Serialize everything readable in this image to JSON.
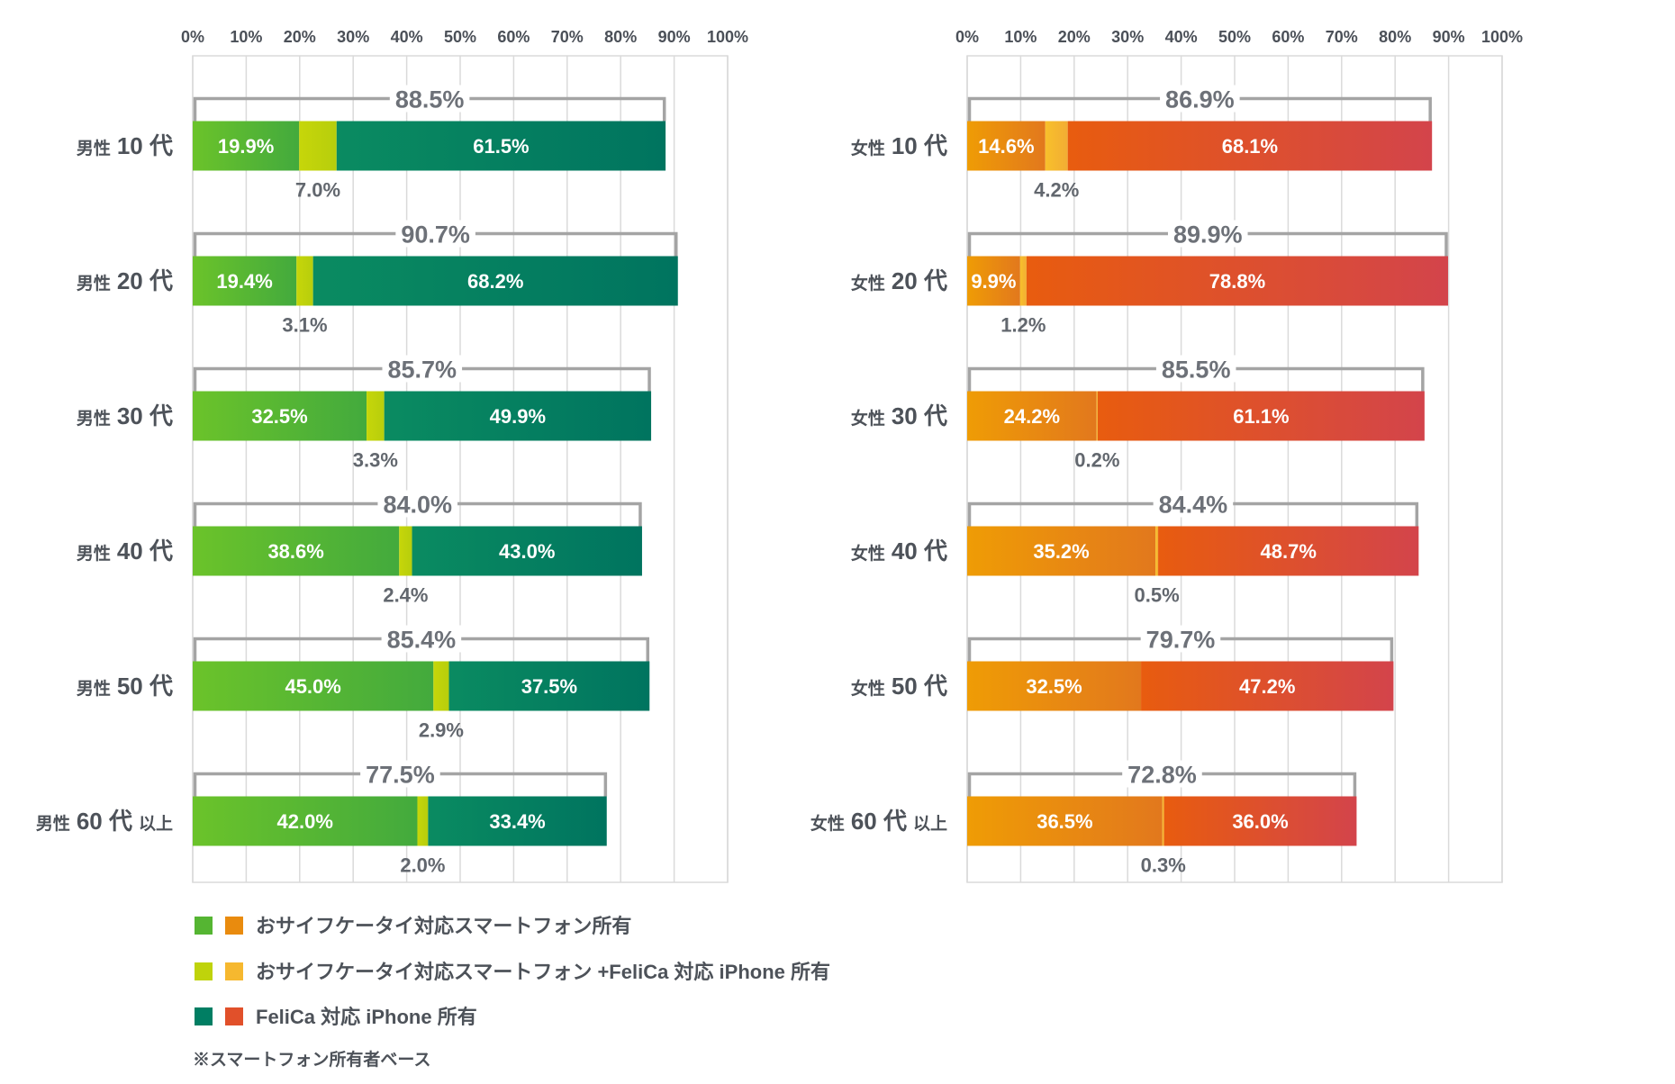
{
  "chart_data": [
    {
      "type": "bar",
      "orientation": "horizontal",
      "stacked": true,
      "x_axis_position": "top",
      "grid": true,
      "legend": "bottom-left",
      "xlim": [
        0,
        100
      ],
      "x_ticks": [
        "0%",
        "10%",
        "20%",
        "30%",
        "40%",
        "50%",
        "60%",
        "70%",
        "80%",
        "90%",
        "100%"
      ],
      "categories": [
        [
          "男性",
          "10 代"
        ],
        [
          "男性",
          "20 代"
        ],
        [
          "男性",
          "30 代"
        ],
        [
          "男性",
          "40 代"
        ],
        [
          "男性",
          "50 代"
        ],
        [
          "男性",
          "60 代",
          "以上"
        ]
      ],
      "series": [
        {
          "name": "おサイフケータイ対応スマートフォン所有",
          "values": [
            19.9,
            19.4,
            32.5,
            38.6,
            45.0,
            42.0
          ],
          "labels": [
            "19.9%",
            "19.4%",
            "32.5%",
            "38.6%",
            "45.0%",
            "42.0%"
          ],
          "label_position": "inside",
          "color": "#55b532",
          "gradient": [
            "#6bc32a",
            "#43aa3d"
          ]
        },
        {
          "name": "おサイフケータイ対応スマートフォン +FeliCa 対応 iPhone 所有",
          "values": [
            7.0,
            3.1,
            3.3,
            2.4,
            2.9,
            2.0
          ],
          "labels": [
            "7.0%",
            "3.1%",
            "3.3%",
            "2.4%",
            "2.9%",
            "2.0%"
          ],
          "label_position": "below",
          "color": "#bfd30b",
          "gradient": [
            "#c6d60a",
            "#b7ce0c"
          ]
        },
        {
          "name": "FeliCa 対応 iPhone 所有",
          "values": [
            61.5,
            68.2,
            49.9,
            43.0,
            37.5,
            33.4
          ],
          "labels": [
            "61.5%",
            "68.2%",
            "49.9%",
            "43.0%",
            "37.5%",
            "33.4%"
          ],
          "label_position": "inside",
          "color": "#007e63",
          "gradient": [
            "#0a8b61",
            "#00745f"
          ]
        }
      ],
      "totals": [
        88.5,
        90.7,
        85.7,
        84.0,
        85.4,
        77.5
      ],
      "total_labels": [
        "88.5%",
        "90.7%",
        "85.7%",
        "84.0%",
        "85.4%",
        "77.5%"
      ]
    },
    {
      "type": "bar",
      "orientation": "horizontal",
      "stacked": true,
      "x_axis_position": "top",
      "grid": true,
      "legend": "bottom-left",
      "xlim": [
        0,
        100
      ],
      "x_ticks": [
        "0%",
        "10%",
        "20%",
        "30%",
        "40%",
        "50%",
        "60%",
        "70%",
        "80%",
        "90%",
        "100%"
      ],
      "categories": [
        [
          "女性",
          "10 代"
        ],
        [
          "女性",
          "20 代"
        ],
        [
          "女性",
          "30 代"
        ],
        [
          "女性",
          "40 代"
        ],
        [
          "女性",
          "50 代"
        ],
        [
          "女性",
          "60 代",
          "以上"
        ]
      ],
      "series": [
        {
          "name": "おサイフケータイ対応スマートフォン所有",
          "values": [
            14.6,
            9.9,
            24.2,
            35.2,
            32.5,
            36.5
          ],
          "labels": [
            "14.6%",
            "9.9%",
            "24.2%",
            "35.2%",
            "32.5%",
            "36.5%"
          ],
          "label_position": "inside",
          "color": "#e98b0e",
          "gradient": [
            "#ef9c05",
            "#e2781d"
          ]
        },
        {
          "name": "おサイフケータイ対応スマートフォン +FeliCa 対応 iPhone 所有",
          "values": [
            4.2,
            1.2,
            0.2,
            0.5,
            null,
            0.3
          ],
          "labels": [
            "4.2%",
            "1.2%",
            "0.2%",
            "0.5%",
            null,
            "0.3%"
          ],
          "label_position": "below",
          "color": "#f6b82f",
          "gradient": [
            "#f8c02b",
            "#f2ad34"
          ]
        },
        {
          "name": "FeliCa 対応 iPhone 所有",
          "values": [
            68.1,
            78.8,
            61.1,
            48.7,
            47.2,
            36.0
          ],
          "labels": [
            "68.1%",
            "78.8%",
            "61.1%",
            "48.7%",
            "47.2%",
            "36.0%"
          ],
          "label_position": "inside",
          "color": "#e1502a",
          "gradient": [
            "#e85c0f",
            "#d3444b"
          ]
        }
      ],
      "totals": [
        86.9,
        89.9,
        85.5,
        84.4,
        79.7,
        72.8
      ],
      "total_labels": [
        "86.9%",
        "89.9%",
        "85.5%",
        "84.4%",
        "79.7%",
        "72.8%"
      ]
    }
  ],
  "note": "※スマートフォン所有者ベース"
}
